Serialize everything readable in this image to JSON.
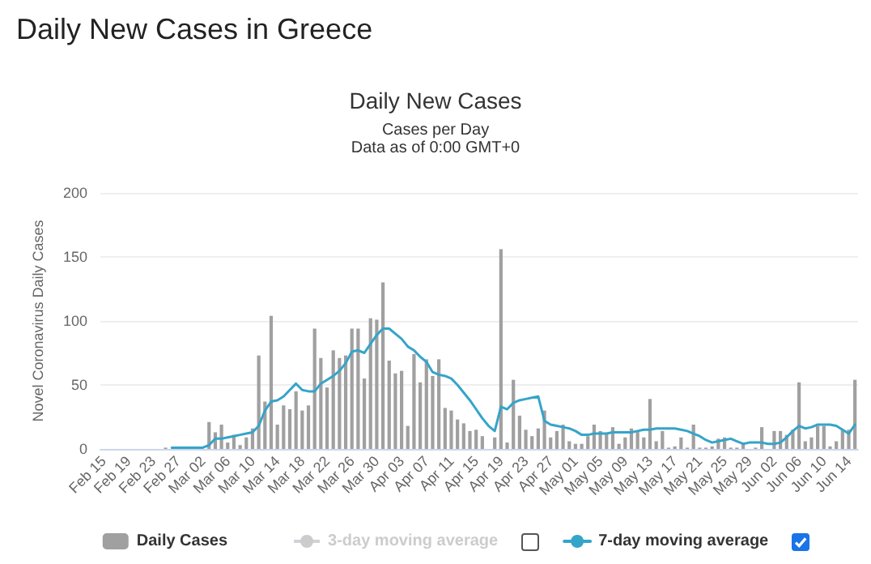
{
  "chart_data": {
    "type": "bar",
    "title": "Daily New Cases",
    "subtitle": "Cases per Day\nData as of 0:00 GMT+0",
    "ylabel": "Novel Coronavirus Daily Cases",
    "annotations": [
      "Daily New Cases in Greece"
    ],
    "categories": [
      "Feb 15",
      null,
      null,
      null,
      "Feb 19",
      null,
      null,
      null,
      "Feb 23",
      null,
      null,
      null,
      "Feb 27",
      null,
      null,
      null,
      "Mar 02",
      null,
      null,
      null,
      "Mar 06",
      null,
      null,
      null,
      "Mar 10",
      null,
      null,
      null,
      "Mar 14",
      null,
      null,
      null,
      "Mar 18",
      null,
      null,
      null,
      "Mar 22",
      null,
      null,
      null,
      "Mar 26",
      null,
      null,
      null,
      "Mar 30",
      null,
      null,
      null,
      "Apr 03",
      null,
      null,
      null,
      "Apr 07",
      null,
      null,
      null,
      "Apr 11",
      null,
      null,
      null,
      "Apr 15",
      null,
      null,
      null,
      "Apr 19",
      null,
      null,
      null,
      "Apr 23",
      null,
      null,
      null,
      "Apr 27",
      null,
      null,
      null,
      "May 01",
      null,
      null,
      null,
      "May 05",
      null,
      null,
      null,
      "May 09",
      null,
      null,
      null,
      "May 13",
      null,
      null,
      null,
      "May 17",
      null,
      null,
      null,
      "May 21",
      null,
      null,
      null,
      "May 25",
      null,
      null,
      null,
      "May 29",
      null,
      null,
      null,
      "Jun 02",
      null,
      null,
      null,
      "Jun 06",
      null,
      null,
      null,
      "Jun 10",
      null,
      null,
      null,
      "Jun 14",
      null
    ],
    "series": [
      {
        "name": "Daily Cases",
        "color": "#a0a0a0",
        "values": [
          0,
          0,
          0,
          0,
          0,
          0,
          0,
          0,
          0,
          0,
          1,
          0,
          0,
          0,
          0,
          0,
          0,
          21,
          13,
          19,
          5,
          11,
          3,
          9,
          16,
          73,
          37,
          104,
          19,
          34,
          31,
          45,
          30,
          34,
          94,
          71,
          48,
          77,
          71,
          73,
          94,
          94,
          55,
          102,
          101,
          130,
          69,
          59,
          61,
          18,
          74,
          52,
          70,
          57,
          70,
          32,
          30,
          23,
          20,
          14,
          15,
          10,
          0,
          9,
          156,
          5,
          54,
          26,
          15,
          10,
          16,
          30,
          9,
          14,
          19,
          6,
          4,
          4,
          10,
          19,
          14,
          12,
          17,
          4,
          9,
          16,
          14,
          9,
          39,
          6,
          14,
          1,
          2,
          9,
          1,
          19,
          1,
          1,
          2,
          8,
          9,
          1,
          1,
          4,
          0,
          1,
          17,
          0,
          14,
          14,
          11,
          15,
          52,
          6,
          9,
          18,
          18,
          2,
          6,
          15,
          15,
          54
        ]
      },
      {
        "name": "3-day moving average",
        "type": "line",
        "color": "#cccccc",
        "values": [
          null,
          null,
          null,
          null,
          null,
          null,
          null,
          null,
          null,
          null,
          null,
          null,
          null,
          null,
          null,
          null,
          null,
          null,
          null,
          null,
          null,
          null,
          null,
          null,
          null,
          null,
          null,
          null,
          null,
          null,
          null,
          null,
          null,
          null,
          null,
          null,
          null,
          null,
          null,
          null,
          null,
          null,
          null,
          null,
          null,
          null,
          null,
          null,
          null,
          null,
          null,
          null,
          null,
          null,
          null,
          null,
          null,
          null,
          null,
          null,
          null,
          null,
          null,
          null,
          null,
          null,
          null,
          null,
          null,
          null,
          null,
          null,
          null,
          null,
          null,
          null,
          null,
          null,
          null,
          null,
          null,
          null,
          null,
          null,
          null,
          null,
          null,
          null,
          null,
          null,
          null,
          null,
          null,
          null,
          null,
          null,
          null,
          null,
          null,
          null,
          null,
          null,
          null,
          null,
          null,
          null,
          null,
          null,
          null,
          null,
          null,
          null,
          null,
          null,
          null,
          null,
          null,
          null,
          null,
          null,
          null,
          null
        ]
      },
      {
        "name": "7-day moving average",
        "type": "line",
        "color": "#35a4c9",
        "values": [
          null,
          null,
          null,
          null,
          null,
          null,
          null,
          null,
          null,
          null,
          null,
          1,
          1,
          1,
          1,
          1,
          1,
          3,
          8,
          8,
          9,
          10,
          11,
          12,
          13,
          18,
          30,
          37,
          38,
          41,
          46,
          51,
          46,
          45,
          45,
          51,
          54,
          57,
          61,
          67,
          76,
          77,
          75,
          82,
          89,
          94,
          94,
          90,
          86,
          80,
          77,
          72,
          68,
          60,
          58,
          57,
          55,
          50,
          44,
          38,
          31,
          24,
          18,
          14,
          33,
          31,
          36,
          38,
          39,
          40,
          41,
          22,
          19,
          18,
          17,
          16,
          14,
          11,
          11,
          12,
          12,
          12,
          13,
          13,
          13,
          13,
          14,
          15,
          15,
          16,
          16,
          16,
          16,
          15,
          14,
          12,
          10,
          7,
          5,
          6,
          7,
          8,
          6,
          4,
          5,
          5,
          5,
          4,
          4,
          5,
          9,
          14,
          18,
          16,
          17,
          19,
          19,
          19,
          18,
          15,
          12,
          19
        ]
      }
    ],
    "ylim": [
      0,
      200
    ],
    "yticks": [
      0,
      50,
      100,
      150,
      200
    ],
    "grid": "y",
    "legend": "bottom",
    "marker": "none",
    "line_style": "solid"
  }
}
